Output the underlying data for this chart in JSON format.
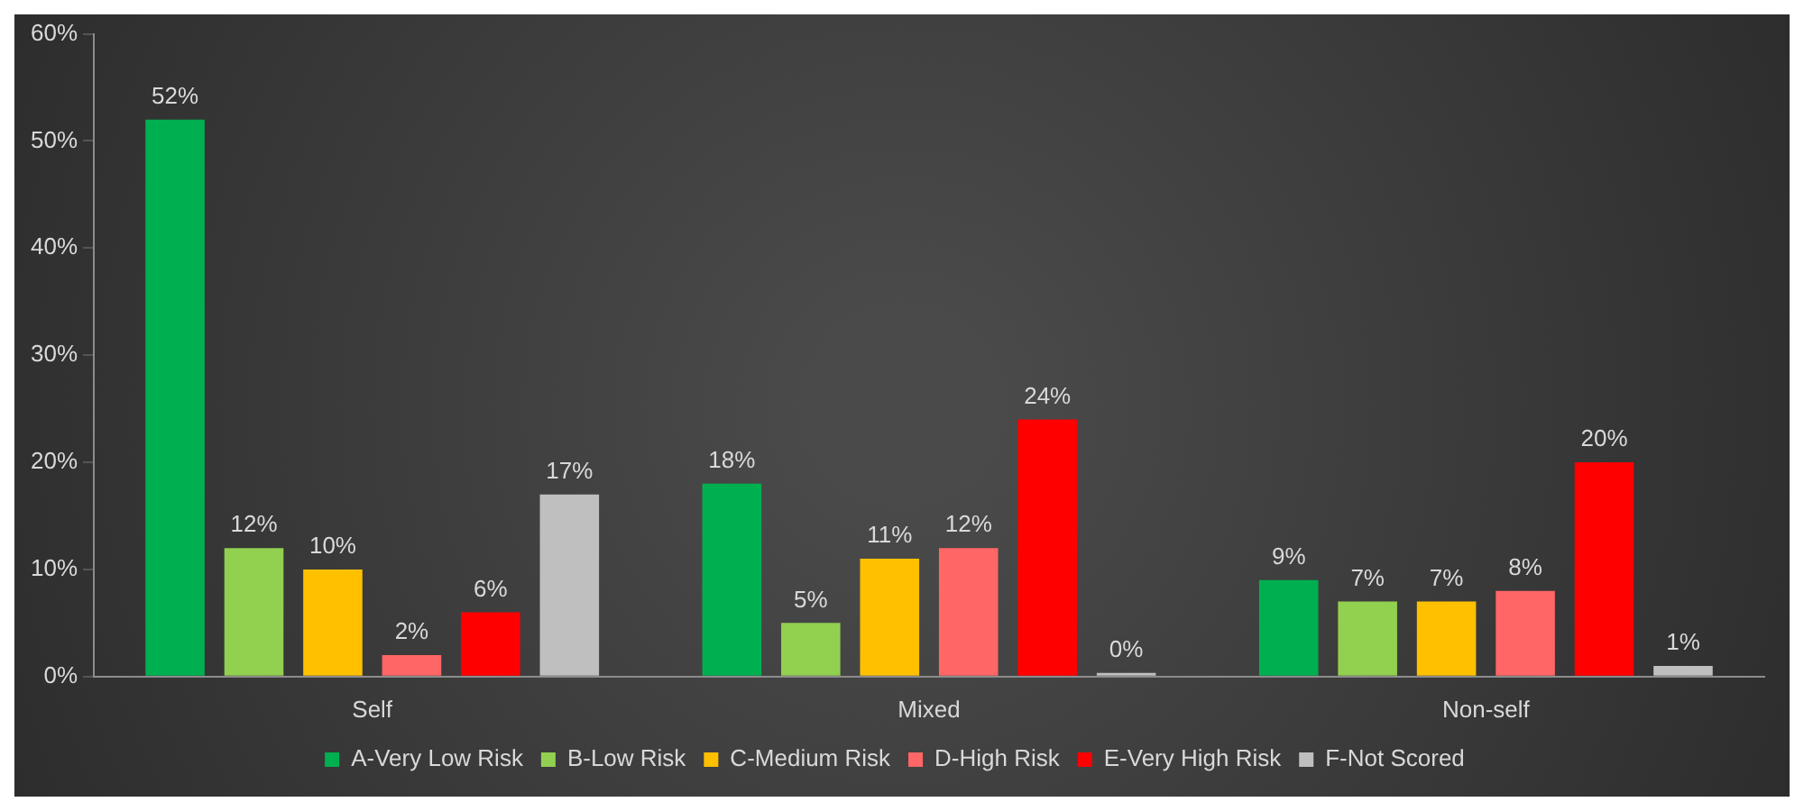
{
  "chart_data": {
    "type": "bar",
    "categories": [
      "Self",
      "Mixed",
      "Non-self"
    ],
    "series": [
      {
        "name": "A-Very Low Risk",
        "color": "#00b050",
        "values": [
          52,
          18,
          9
        ],
        "value_labels": [
          "52%",
          "18%",
          "9%"
        ]
      },
      {
        "name": "B-Low Risk",
        "color": "#92d050",
        "values": [
          12,
          5,
          7
        ],
        "value_labels": [
          "12%",
          "5%",
          "7%"
        ]
      },
      {
        "name": "C-Medium Risk",
        "color": "#ffc000",
        "values": [
          10,
          11,
          7
        ],
        "value_labels": [
          "10%",
          "11%",
          "7%"
        ]
      },
      {
        "name": "D-High Risk",
        "color": "#ff6666",
        "values": [
          2,
          12,
          8
        ],
        "value_labels": [
          "2%",
          "12%",
          "8%"
        ]
      },
      {
        "name": "E-Very High Risk",
        "color": "#ff0000",
        "values": [
          6,
          24,
          20
        ],
        "value_labels": [
          "6%",
          "24%",
          "20%"
        ]
      },
      {
        "name": "F-Not Scored",
        "color": "#bfbfbf",
        "values": [
          17,
          0,
          1
        ],
        "value_labels": [
          "17%",
          "0%",
          "1%"
        ]
      }
    ],
    "ylim": [
      0,
      60
    ],
    "yticks": [
      {
        "value": 0,
        "label": "0%"
      },
      {
        "value": 10,
        "label": "10%"
      },
      {
        "value": 20,
        "label": "20%"
      },
      {
        "value": 30,
        "label": "30%"
      },
      {
        "value": 40,
        "label": "40%"
      },
      {
        "value": 50,
        "label": "50%"
      },
      {
        "value": 60,
        "label": "60%"
      }
    ],
    "grid": false,
    "legend": "bottom"
  }
}
